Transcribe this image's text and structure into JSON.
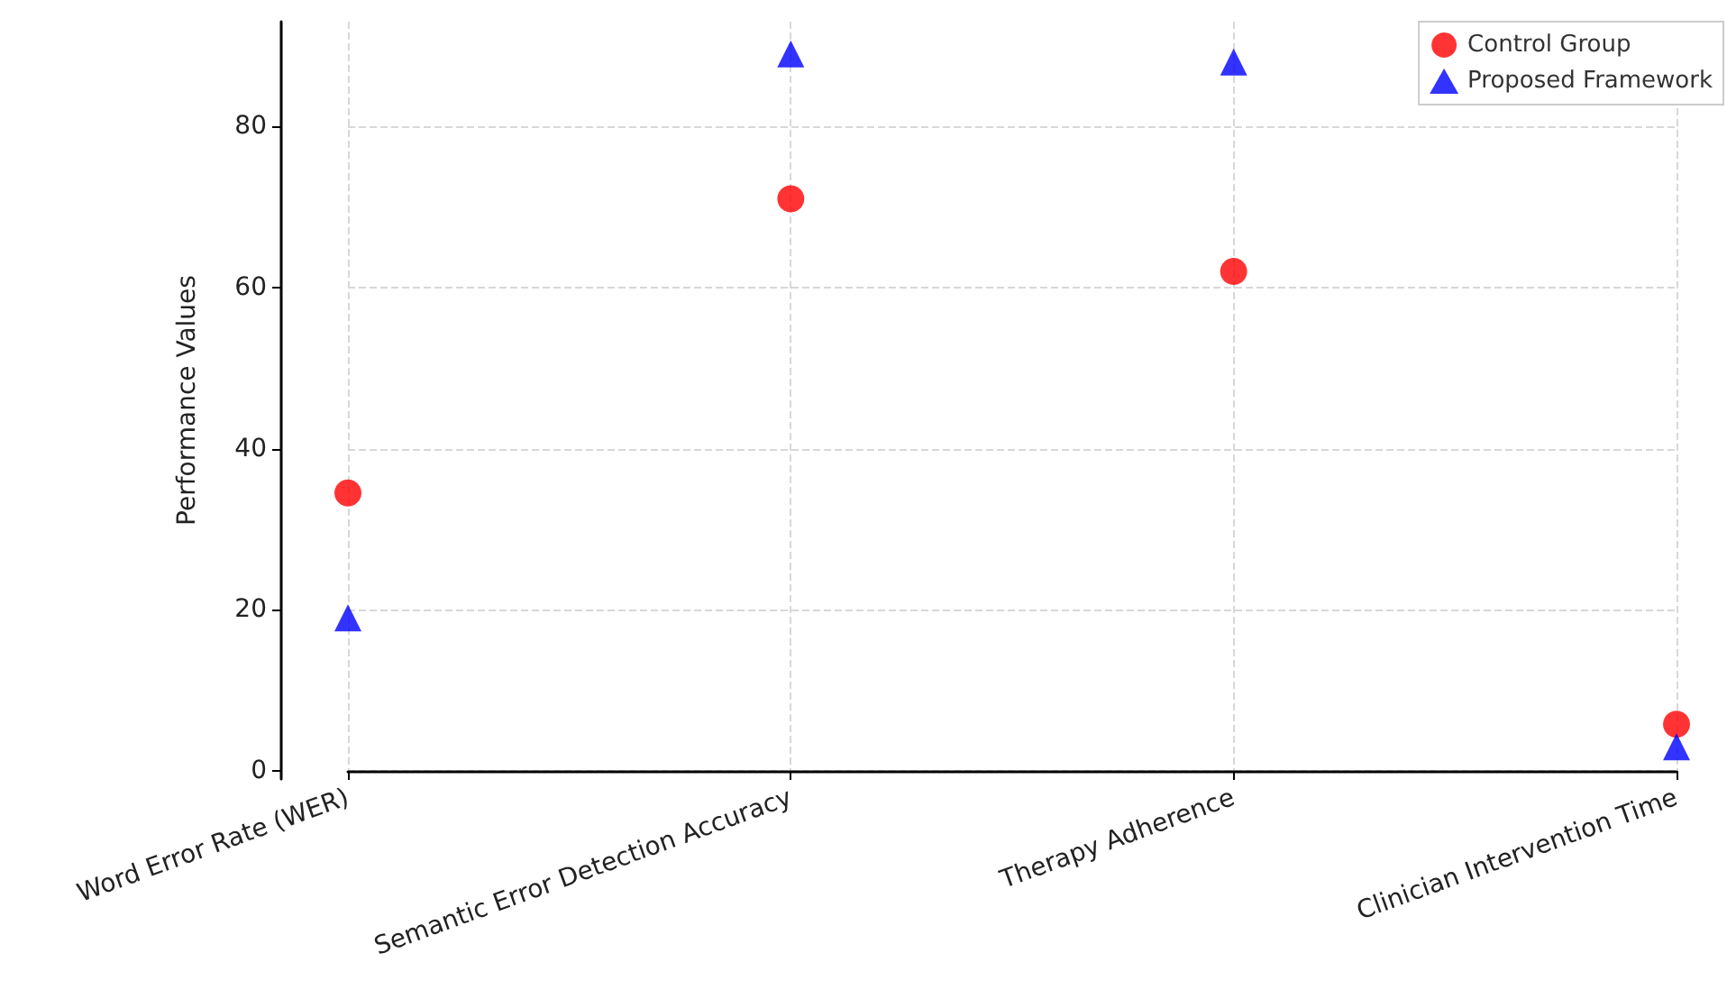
{
  "chart_data": {
    "type": "scatter",
    "ylabel": "Performance Values",
    "categories": [
      "Word Error Rate (WER)",
      "Semantic Error Detection Accuracy",
      "Therapy Adherence",
      "Clinician Intervention Time"
    ],
    "series": [
      {
        "name": "Control Group",
        "color": "#ff0000",
        "marker": "circle",
        "values": [
          34.5,
          71,
          62,
          5.8
        ]
      },
      {
        "name": "Proposed Framework",
        "color": "#0000ff",
        "marker": "triangle",
        "values": [
          19,
          89,
          88,
          3
        ]
      }
    ],
    "ylim": [
      -1,
      93
    ],
    "yticks": [
      0,
      20,
      40,
      60,
      80
    ],
    "grid": true,
    "legend": "top right"
  }
}
